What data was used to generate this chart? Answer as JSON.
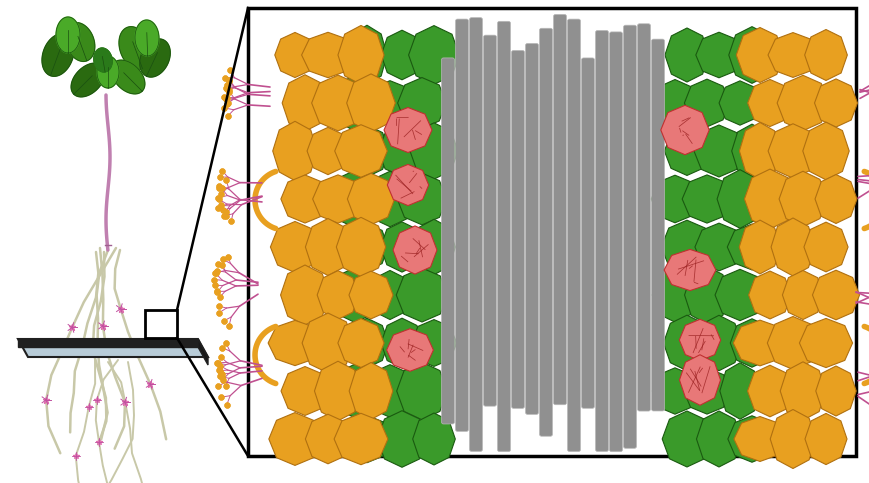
{
  "background_color": "#ffffff",
  "figure_width": 8.7,
  "figure_height": 4.83,
  "green_color": "#3a9a2a",
  "green_outline": "#1a5a10",
  "orange_color": "#e8a020",
  "orange_outline": "#b07010",
  "gray_color": "#909090",
  "gray_outline": "#aaaaaa",
  "pink_color": "#e87878",
  "pink_outline": "#c03030",
  "fungi_color": "#c05090",
  "fungi_dot_color": "#e8a020",
  "orange_hypha_color": "#e8a020",
  "root_color": "#c8c8a8",
  "stem_color": "#a0a888",
  "leaf_dark": "#2a6a10",
  "leaf_mid": "#3a8a1a",
  "leaf_light": "#4aaa28"
}
